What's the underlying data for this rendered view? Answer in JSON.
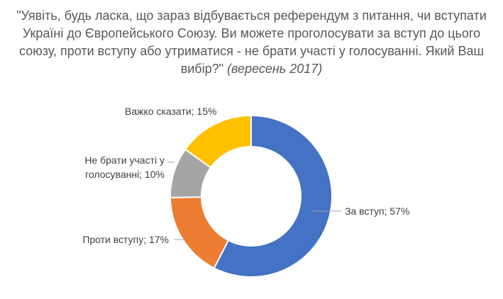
{
  "chart_data": {
    "type": "pie",
    "title": "\"Уявіть, будь ласка, що зараз відбувається референдум з питання, чи вступати Україні до Європейського Союзу. Ви можете проголосувати за вступ до цього союзу, проти вступу або утриматися - не брати участі у голосуванні. Який Ваш вибір?\"",
    "subtitle": "(вересень 2017)",
    "donut": true,
    "categories": [
      "За вступ",
      "Проти вступу",
      "Не брати участі у голосуванні",
      "Важко сказати"
    ],
    "values": [
      57,
      17,
      10,
      15
    ],
    "colors": [
      "#4472C4",
      "#ED7D31",
      "#A5A5A5",
      "#FFC000"
    ],
    "data_labels": [
      [
        "За вступ; 57%"
      ],
      [
        "Проти вступу; 17%"
      ],
      [
        "Не брати участі у",
        "голосуванні; 10%"
      ],
      [
        "Важко сказати; 15%"
      ]
    ]
  }
}
